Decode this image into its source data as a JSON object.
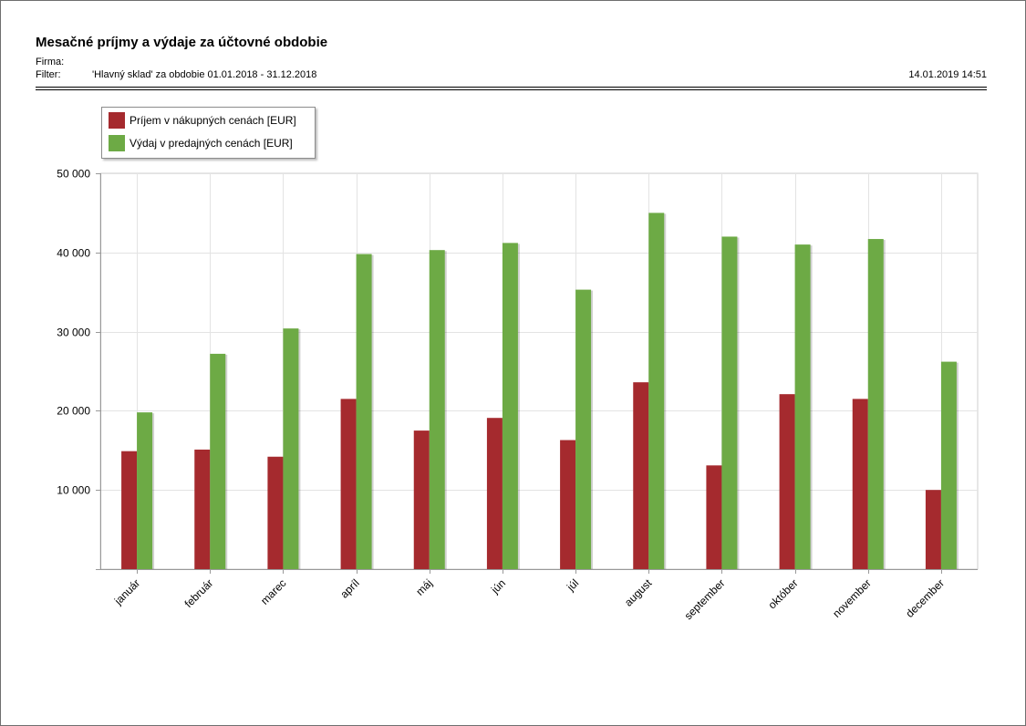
{
  "report": {
    "title": "Mesačné príjmy a výdaje za účtovné obdobie",
    "firma_label": "Firma:",
    "filter_label": "Filter:",
    "filter_value": "'Hlavný sklad' za obdobie 01.01.2018 - 31.12.2018",
    "timestamp": "14.01.2019 14:51"
  },
  "chart_data": {
    "type": "bar",
    "title": "",
    "xlabel": "",
    "ylabel": "",
    "ylim": [
      0,
      50000
    ],
    "yticks": [
      10000,
      20000,
      30000,
      40000,
      50000
    ],
    "ytick_labels": [
      "10 000",
      "20 000",
      "30 000",
      "40 000",
      "50 000"
    ],
    "grid": true,
    "legend_position": "top-left",
    "categories": [
      "január",
      "február",
      "marec",
      "apríl",
      "máj",
      "jún",
      "júl",
      "august",
      "september",
      "október",
      "november",
      "december"
    ],
    "series": [
      {
        "name": "Príjem v nákupných cenách [EUR]",
        "color": "#a52a2e",
        "values": [
          14900,
          15100,
          14200,
          21500,
          17500,
          19100,
          16300,
          23600,
          13100,
          22100,
          21500,
          10000
        ]
      },
      {
        "name": "Výdaj v predajných cenách [EUR]",
        "color": "#6daa45",
        "values": [
          19800,
          27200,
          30400,
          39800,
          40300,
          41200,
          35300,
          45000,
          42000,
          41000,
          41700,
          26200
        ]
      }
    ]
  }
}
